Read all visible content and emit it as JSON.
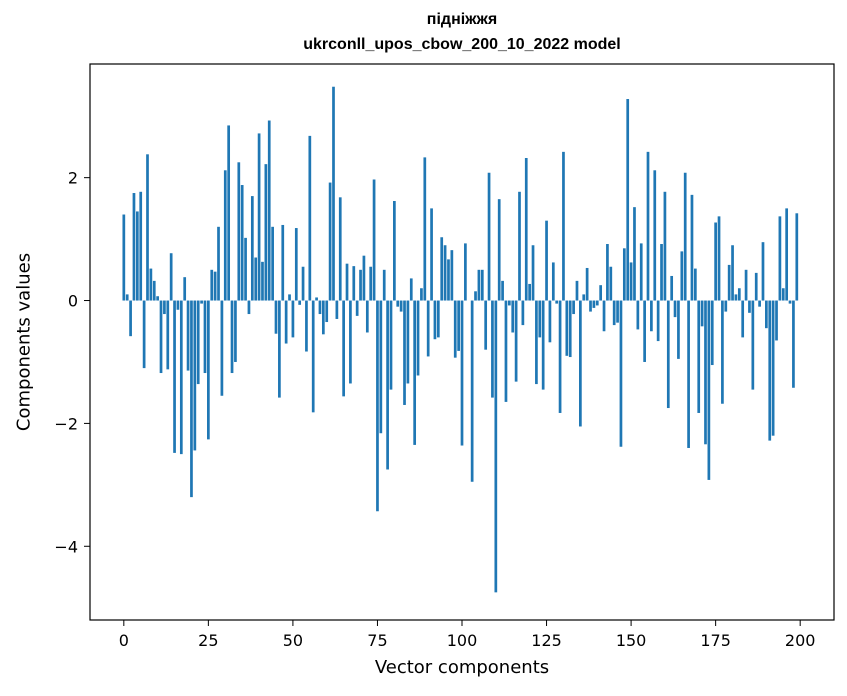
{
  "chart_data": {
    "type": "bar",
    "title": "підніжжя\nukrconll_upos_cbow_200_10_2022 model",
    "title_lines": [
      "підніжжя",
      "ukrconll_upos_cbow_200_10_2022 model"
    ],
    "xlabel": "Vector components",
    "ylabel": "Components values",
    "xlim": [
      -10,
      210
    ],
    "ylim": [
      -5.2,
      3.85
    ],
    "xticks": [
      0,
      25,
      50,
      75,
      100,
      125,
      150,
      175,
      200
    ],
    "yticks": [
      -4,
      -2,
      0,
      2
    ],
    "ytick_labels": [
      "−4",
      "−2",
      "0",
      "2"
    ],
    "grid": false,
    "bar_color": "#1f77b4",
    "x": [
      0,
      1,
      2,
      3,
      4,
      5,
      6,
      7,
      8,
      9,
      10,
      11,
      12,
      13,
      14,
      15,
      16,
      17,
      18,
      19,
      20,
      21,
      22,
      23,
      24,
      25,
      26,
      27,
      28,
      29,
      30,
      31,
      32,
      33,
      34,
      35,
      36,
      37,
      38,
      39,
      40,
      41,
      42,
      43,
      44,
      45,
      46,
      47,
      48,
      49,
      50,
      51,
      52,
      53,
      54,
      55,
      56,
      57,
      58,
      59,
      60,
      61,
      62,
      63,
      64,
      65,
      66,
      67,
      68,
      69,
      70,
      71,
      72,
      73,
      74,
      75,
      76,
      77,
      78,
      79,
      80,
      81,
      82,
      83,
      84,
      85,
      86,
      87,
      88,
      89,
      90,
      91,
      92,
      93,
      94,
      95,
      96,
      97,
      98,
      99,
      100,
      101,
      102,
      103,
      104,
      105,
      106,
      107,
      108,
      109,
      110,
      111,
      112,
      113,
      114,
      115,
      116,
      117,
      118,
      119,
      120,
      121,
      122,
      123,
      124,
      125,
      126,
      127,
      128,
      129,
      130,
      131,
      132,
      133,
      134,
      135,
      136,
      137,
      138,
      139,
      140,
      141,
      142,
      143,
      144,
      145,
      146,
      147,
      148,
      149,
      150,
      151,
      152,
      153,
      154,
      155,
      156,
      157,
      158,
      159,
      160,
      161,
      162,
      163,
      164,
      165,
      166,
      167,
      168,
      169,
      170,
      171,
      172,
      173,
      174,
      175,
      176,
      177,
      178,
      179,
      180,
      181,
      182,
      183,
      184,
      185,
      186,
      187,
      188,
      189,
      190,
      191,
      192,
      193,
      194,
      195,
      196,
      197,
      198,
      199
    ],
    "values": [
      1.4,
      0.1,
      -0.58,
      1.75,
      1.45,
      1.77,
      -1.1,
      2.38,
      0.52,
      0.32,
      0.07,
      -1.18,
      -0.22,
      -1.12,
      0.77,
      -2.48,
      -0.15,
      -2.5,
      0.38,
      -1.14,
      -3.2,
      -2.44,
      -1.36,
      -0.05,
      -1.18,
      -2.26,
      0.5,
      0.47,
      1.2,
      -1.55,
      2.12,
      2.85,
      -1.18,
      -1.0,
      2.25,
      1.88,
      1.02,
      -0.22,
      1.7,
      0.7,
      2.72,
      0.63,
      2.22,
      2.93,
      1.2,
      -0.54,
      -1.58,
      1.23,
      -0.7,
      0.1,
      -0.6,
      1.18,
      -0.07,
      0.55,
      -0.83,
      2.68,
      -1.82,
      0.05,
      -0.22,
      -0.55,
      -0.35,
      1.92,
      3.48,
      -0.3,
      1.68,
      -1.56,
      0.6,
      -1.35,
      0.56,
      -0.25,
      0.5,
      0.73,
      -0.52,
      0.55,
      1.97,
      -3.43,
      -2.16,
      0.5,
      -2.75,
      -1.45,
      1.62,
      -0.1,
      -0.18,
      -1.7,
      -1.35,
      0.36,
      -2.35,
      -1.22,
      0.2,
      2.33,
      -0.91,
      1.5,
      -0.63,
      -0.6,
      1.03,
      0.9,
      0.67,
      0.82,
      -0.93,
      -0.82,
      -2.36,
      0.93,
      0.0,
      -2.95,
      0.15,
      0.5,
      0.5,
      -0.8,
      2.08,
      -1.58,
      -4.75,
      1.65,
      0.32,
      -1.65,
      -0.08,
      -0.52,
      -1.32,
      1.77,
      -0.4,
      2.32,
      0.27,
      0.9,
      -1.36,
      -0.6,
      -1.45,
      1.3,
      -0.68,
      0.62,
      -0.05,
      -1.83,
      2.42,
      -0.9,
      -0.92,
      -0.22,
      0.32,
      -2.05,
      0.1,
      0.53,
      -0.18,
      -0.12,
      -0.08,
      0.25,
      -0.5,
      0.92,
      0.55,
      -0.4,
      -0.36,
      -2.38,
      0.85,
      3.28,
      0.62,
      1.52,
      -0.47,
      0.93,
      -1.0,
      2.42,
      -0.5,
      2.12,
      -0.66,
      0.92,
      1.77,
      -1.75,
      0.4,
      -0.27,
      -0.95,
      0.8,
      2.08,
      -2.4,
      1.72,
      0.52,
      -1.83,
      -0.42,
      -2.34,
      -2.92,
      -1.05,
      1.27,
      1.37,
      -1.68,
      -0.18,
      0.58,
      0.9,
      0.1,
      0.2,
      -0.6,
      0.5,
      -0.2,
      -1.45,
      0.45,
      -0.1,
      0.95,
      -0.45,
      -2.28,
      -2.2,
      -0.65,
      1.37,
      0.2,
      1.5,
      -0.05,
      -1.42,
      1.42
    ]
  }
}
